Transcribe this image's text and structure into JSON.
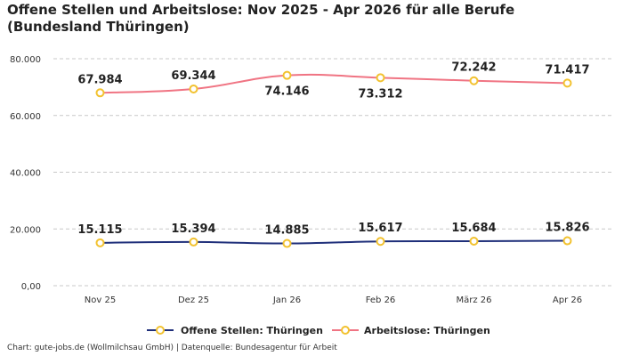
{
  "chart_data": {
    "type": "line",
    "title": "Offene Stellen und Arbeitslose: Nov 2025 - Apr 2026 für alle Berufe (Bundesland Thüringen)",
    "xlabel": "",
    "ylabel": "",
    "categories": [
      "Nov 25",
      "Dez 25",
      "Jan 26",
      "Feb 26",
      "März 26",
      "Apr 26"
    ],
    "ylim": [
      0,
      80000
    ],
    "yticks": [
      0,
      20000,
      40000,
      60000,
      80000
    ],
    "ytick_labels": [
      "0,00",
      "20.000",
      "40.000",
      "60.000",
      "80.000"
    ],
    "grid": true,
    "legend_position": "bottom",
    "series": [
      {
        "name": "Offene Stellen: Thüringen",
        "values": [
          15115,
          15394,
          14885,
          15617,
          15684,
          15826
        ],
        "labels": [
          "15.115",
          "15.394",
          "14.885",
          "15.617",
          "15.684",
          "15.826"
        ],
        "color": "#1f2f7a",
        "marker_color": "#f2c230"
      },
      {
        "name": "Arbeitslose: Thüringen",
        "values": [
          67984,
          69344,
          74146,
          73312,
          72242,
          71417
        ],
        "labels": [
          "67.984",
          "69.344",
          "74.146",
          "73.312",
          "72.242",
          "71.417"
        ],
        "color": "#f07483",
        "marker_color": "#f2c230"
      }
    ]
  },
  "footer": {
    "source": "Chart: gute-jobs.de (Wollmilchsau GmbH) | Datenquelle: Bundesagentur für Arbeit"
  }
}
